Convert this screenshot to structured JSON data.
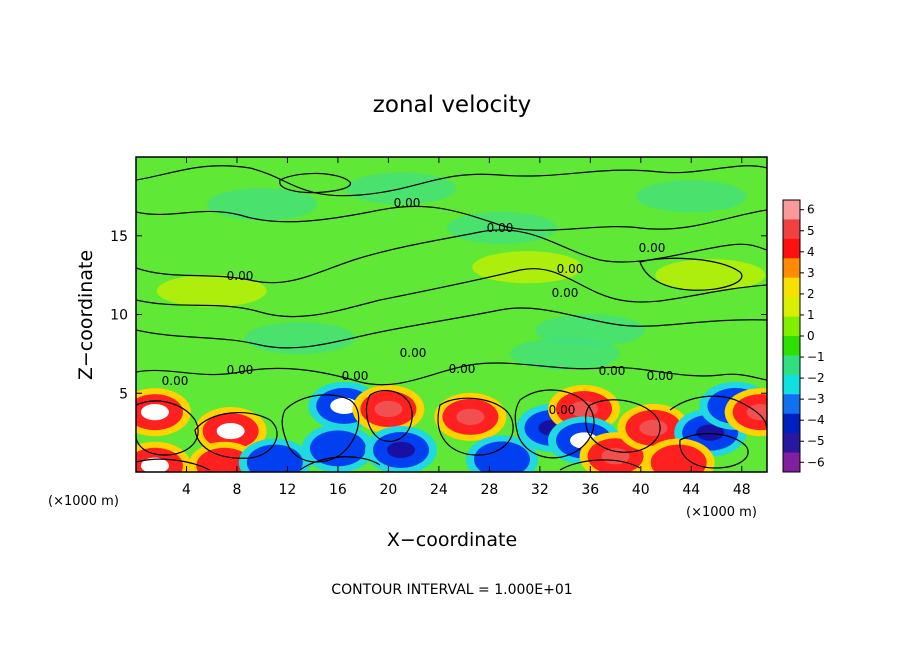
{
  "chart_data": {
    "type": "heatmap",
    "title": "zonal velocity",
    "xlabel": "X−coordinate",
    "ylabel": "Z−coordinate",
    "x_unit_label": "(×1000 m)",
    "x_unit_label_right": "(×1000 m)",
    "x_range": [
      0,
      50
    ],
    "y_range": [
      0,
      20
    ],
    "x_ticks": [
      4,
      8,
      12,
      16,
      20,
      24,
      28,
      32,
      36,
      40,
      44,
      48
    ],
    "y_ticks": [
      5,
      10,
      15
    ],
    "colorbar": {
      "range": [
        -6,
        6
      ],
      "ticks": [
        "6",
        "5",
        "4",
        "3",
        "2",
        "1",
        "0",
        "−1",
        "−2",
        "−3",
        "−4",
        "−5",
        "−6"
      ]
    },
    "contour_label": "0.00",
    "contour_interval_text": "CONTOUR INTERVAL = 1.000E+01",
    "features": [
      {
        "x": 1.5,
        "z": 3.8,
        "value": 6
      },
      {
        "x": 1.5,
        "z": 0.4,
        "value": 6
      },
      {
        "x": 7.5,
        "z": 2.6,
        "value": 6
      },
      {
        "x": 7.0,
        "z": 0.4,
        "value": 4
      },
      {
        "x": 11.0,
        "z": 0.6,
        "value": -4
      },
      {
        "x": 16.5,
        "z": 4.2,
        "value": -6
      },
      {
        "x": 16.0,
        "z": 1.5,
        "value": -4
      },
      {
        "x": 20.0,
        "z": 4.0,
        "value": 5
      },
      {
        "x": 21.0,
        "z": 1.4,
        "value": -5
      },
      {
        "x": 26.5,
        "z": 3.5,
        "value": 5
      },
      {
        "x": 29.0,
        "z": 0.8,
        "value": -4
      },
      {
        "x": 33.0,
        "z": 2.8,
        "value": -5
      },
      {
        "x": 35.5,
        "z": 4.0,
        "value": 5
      },
      {
        "x": 35.5,
        "z": 2.0,
        "value": -6
      },
      {
        "x": 38.0,
        "z": 1.0,
        "value": 5
      },
      {
        "x": 41.0,
        "z": 2.8,
        "value": 5
      },
      {
        "x": 45.5,
        "z": 2.5,
        "value": -5
      },
      {
        "x": 47.5,
        "z": 4.2,
        "value": -4
      },
      {
        "x": 49.5,
        "z": 3.8,
        "value": 5
      },
      {
        "x": 43.0,
        "z": 0.6,
        "value": 4
      },
      {
        "x": 10.0,
        "z": 17.0,
        "value": -1
      },
      {
        "x": 21.0,
        "z": 18.0,
        "value": -1
      },
      {
        "x": 29.0,
        "z": 15.5,
        "value": -1
      },
      {
        "x": 44.0,
        "z": 17.5,
        "value": -1
      },
      {
        "x": 13.0,
        "z": 8.5,
        "value": -1
      },
      {
        "x": 36.0,
        "z": 9.0,
        "value": -1
      },
      {
        "x": 34.0,
        "z": 7.5,
        "value": -1
      },
      {
        "x": 31.0,
        "z": 13.0,
        "value": 1
      },
      {
        "x": 45.5,
        "z": 12.5,
        "value": 1
      },
      {
        "x": 6.0,
        "z": 11.5,
        "value": 1
      }
    ]
  }
}
